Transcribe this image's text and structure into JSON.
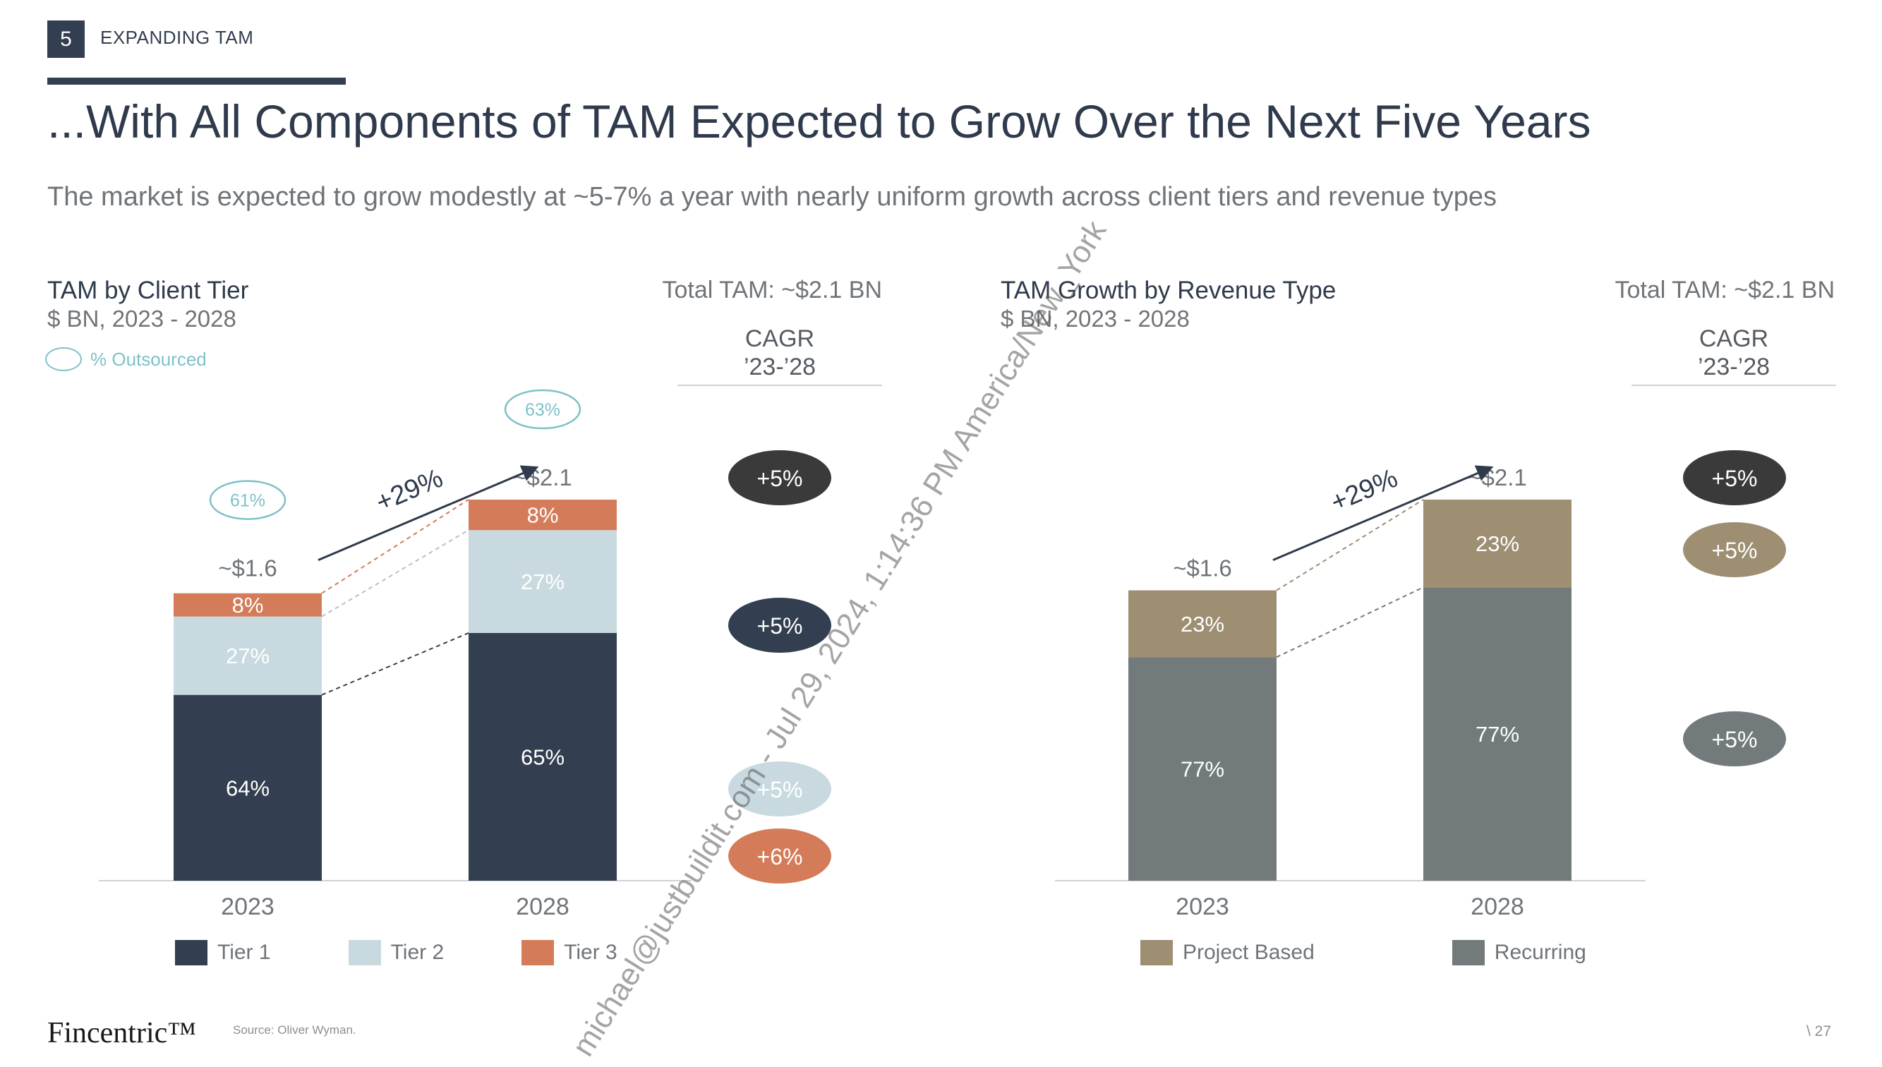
{
  "header": {
    "section_number": "5",
    "section_label": "EXPANDING TAM",
    "title": "...With All Components of TAM Expected to Grow Over the Next Five Years",
    "subtitle": "The market is expected to grow modestly at ~5-7% a year with nearly uniform growth across client tiers and revenue types"
  },
  "colors": {
    "tier1": "#333f50",
    "tier2": "#c8dadf",
    "tier3": "#d47c59",
    "project_based": "#9e8e72",
    "recurring": "#727a7c",
    "outsourced": "#7fc1c9"
  },
  "left_chart": {
    "title": "TAM by Client Tier",
    "subtitle": "$ BN, 2023 - 2028",
    "total_label": "Total TAM: ~$2.1 BN",
    "cagr_header_line1": "CAGR",
    "cagr_header_line2": "’23-’28",
    "outsourced_legend": "% Outsourced",
    "growth_label": "+29%",
    "legend": [
      {
        "label": "Tier 1",
        "color": "#333f50"
      },
      {
        "label": "Tier 2",
        "color": "#c8dadf"
      },
      {
        "label": "Tier 3",
        "color": "#d47c59"
      }
    ],
    "cagr_badges": [
      "+5%",
      "+5%",
      "+5%",
      "+6%"
    ]
  },
  "right_chart": {
    "title": "TAM Growth by Revenue Type",
    "subtitle": "$ BN, 2023 - 2028",
    "total_label": "Total TAM: ~$2.1 BN",
    "cagr_header_line1": "CAGR",
    "cagr_header_line2": "’23-’28",
    "growth_label": "+29%",
    "legend": [
      {
        "label": "Project Based",
        "color": "#9e8e72"
      },
      {
        "label": "Recurring",
        "color": "#727a7c"
      }
    ],
    "cagr_badges": [
      "+5%",
      "+5%",
      "+5%"
    ]
  },
  "chart_data": [
    {
      "type": "bar",
      "title": "TAM by Client Tier",
      "subtitle": "$ BN, 2023 - 2028",
      "categories": [
        "2023",
        "2028"
      ],
      "totals": [
        1.6,
        2.1
      ],
      "total_labels": [
        "~$1.6",
        "~$2.1"
      ],
      "series": [
        {
          "name": "Tier 1",
          "share_pct": [
            64,
            65
          ],
          "labels": [
            "64%",
            "65%"
          ],
          "color": "#333f50"
        },
        {
          "name": "Tier 2",
          "share_pct": [
            27,
            27
          ],
          "labels": [
            "27%",
            "27%"
          ],
          "color": "#c8dadf"
        },
        {
          "name": "Tier 3",
          "share_pct": [
            8,
            8
          ],
          "labels": [
            "8%",
            "8%"
          ],
          "color": "#d47c59"
        }
      ],
      "outsourced_pct": [
        "61%",
        "63%"
      ],
      "growth": "+29%",
      "cagr": [
        {
          "series": "Tier 1",
          "value": "+5%"
        },
        {
          "series": "Tier 2",
          "value": "+5%"
        },
        {
          "series": "Tier 3",
          "value": "+6%"
        }
      ],
      "total_cagr": "+5%"
    },
    {
      "type": "bar",
      "title": "TAM Growth by Revenue Type",
      "subtitle": "$ BN, 2023 - 2028",
      "categories": [
        "2023",
        "2028"
      ],
      "totals": [
        1.6,
        2.1
      ],
      "total_labels": [
        "~$1.6",
        "~$2.1"
      ],
      "series": [
        {
          "name": "Recurring",
          "share_pct": [
            77,
            77
          ],
          "labels": [
            "77%",
            "77%"
          ],
          "color": "#727a7c"
        },
        {
          "name": "Project Based",
          "share_pct": [
            23,
            23
          ],
          "labels": [
            "23%",
            "23%"
          ],
          "color": "#9e8e72"
        }
      ],
      "growth": "+29%",
      "cagr": [
        {
          "series": "Project Based",
          "value": "+5%"
        },
        {
          "series": "Recurring",
          "value": "+5%"
        }
      ],
      "total_cagr": "+5%"
    }
  ],
  "footer": {
    "logo": "Fincentric™",
    "source": "Source: Oliver Wyman.",
    "page": "\\  27"
  },
  "watermark": "michael@justbuildit.com - Jul 29, 2024, 1:14:36 PM America/New_York"
}
